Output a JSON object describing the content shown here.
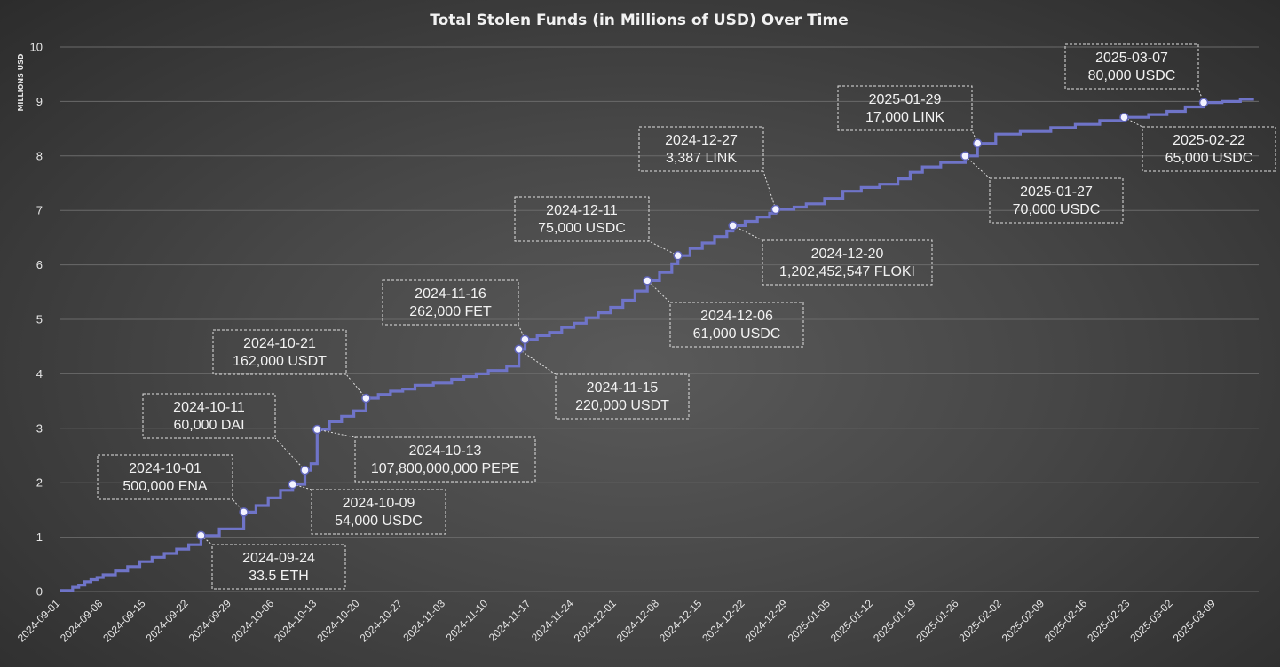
{
  "chart_data": {
    "type": "line",
    "title": "Total Stolen Funds (in Millions of USD) Over Time",
    "ylabel": "MILLIONS USD",
    "xlabel": "",
    "ylim": [
      0,
      10
    ],
    "xlim": [
      "2024-09-01",
      "2025-03-16"
    ],
    "y_ticks": [
      "0",
      "1",
      "2",
      "3",
      "4",
      "5",
      "6",
      "7",
      "8",
      "9",
      "10"
    ],
    "x_ticks": [
      "2024-09-01",
      "2024-09-08",
      "2024-09-15",
      "2024-09-22",
      "2024-09-29",
      "2024-10-06",
      "2024-10-13",
      "2024-10-20",
      "2024-10-27",
      "2024-11-03",
      "2024-11-10",
      "2024-11-17",
      "2024-11-24",
      "2024-12-01",
      "2024-12-08",
      "2024-12-15",
      "2024-12-22",
      "2024-12-29",
      "2025-01-05",
      "2025-01-12",
      "2025-01-19",
      "2025-01-26",
      "2025-02-02",
      "2025-02-09",
      "2025-02-16",
      "2025-02-23",
      "2025-03-02",
      "2025-03-09"
    ],
    "grid": true,
    "legend": "none",
    "line_style": "step",
    "color": "#6f74c8",
    "series": [
      {
        "dates": [
          "2024-09-01",
          "2024-09-03",
          "2024-09-04",
          "2024-09-05",
          "2024-09-06",
          "2024-09-07",
          "2024-09-08",
          "2024-09-10",
          "2024-09-12",
          "2024-09-14",
          "2024-09-16",
          "2024-09-18",
          "2024-09-20",
          "2024-09-22",
          "2024-09-24",
          "2024-09-27",
          "2024-10-01",
          "2024-10-03",
          "2024-10-05",
          "2024-10-07",
          "2024-10-09",
          "2024-10-11",
          "2024-10-12",
          "2024-10-13",
          "2024-10-15",
          "2024-10-17",
          "2024-10-19",
          "2024-10-21",
          "2024-10-23",
          "2024-10-25",
          "2024-10-27",
          "2024-10-29",
          "2024-11-01",
          "2024-11-04",
          "2024-11-06",
          "2024-11-08",
          "2024-11-10",
          "2024-11-13",
          "2024-11-15",
          "2024-11-16",
          "2024-11-18",
          "2024-11-20",
          "2024-11-22",
          "2024-11-24",
          "2024-11-26",
          "2024-11-28",
          "2024-11-30",
          "2024-12-02",
          "2024-12-04",
          "2024-12-06",
          "2024-12-08",
          "2024-12-10",
          "2024-12-11",
          "2024-12-13",
          "2024-12-15",
          "2024-12-17",
          "2024-12-19",
          "2024-12-20",
          "2024-12-22",
          "2024-12-24",
          "2024-12-26",
          "2024-12-27",
          "2024-12-30",
          "2025-01-01",
          "2025-01-04",
          "2025-01-07",
          "2025-01-10",
          "2025-01-13",
          "2025-01-16",
          "2025-01-18",
          "2025-01-20",
          "2025-01-23",
          "2025-01-27",
          "2025-01-29",
          "2025-02-01",
          "2025-02-05",
          "2025-02-10",
          "2025-02-14",
          "2025-02-18",
          "2025-02-22",
          "2025-02-26",
          "2025-03-01",
          "2025-03-04",
          "2025-03-07",
          "2025-03-10",
          "2025-03-13",
          "2025-03-15"
        ],
        "values": [
          0.02,
          0.08,
          0.12,
          0.18,
          0.22,
          0.26,
          0.31,
          0.38,
          0.46,
          0.55,
          0.63,
          0.7,
          0.78,
          0.86,
          1.03,
          1.15,
          1.46,
          1.58,
          1.72,
          1.86,
          1.97,
          2.23,
          2.35,
          2.98,
          3.12,
          3.22,
          3.32,
          3.55,
          3.62,
          3.68,
          3.72,
          3.79,
          3.83,
          3.9,
          3.95,
          4.0,
          4.06,
          4.14,
          4.45,
          4.63,
          4.7,
          4.76,
          4.85,
          4.93,
          5.03,
          5.12,
          5.22,
          5.35,
          5.52,
          5.71,
          5.86,
          6.02,
          6.17,
          6.3,
          6.4,
          6.52,
          6.62,
          6.72,
          6.8,
          6.88,
          6.95,
          7.02,
          7.06,
          7.12,
          7.22,
          7.35,
          7.42,
          7.48,
          7.58,
          7.7,
          7.8,
          7.88,
          8.0,
          8.23,
          8.4,
          8.45,
          8.52,
          8.58,
          8.65,
          8.71,
          8.76,
          8.82,
          8.9,
          8.98,
          9.0,
          9.04,
          9.07
        ]
      }
    ],
    "annotations": [
      {
        "date": "2024-09-24",
        "value": 1.03,
        "label": "2024-09-24",
        "amount": "33.5 ETH"
      },
      {
        "date": "2024-10-01",
        "value": 1.46,
        "label": "2024-10-01",
        "amount": "500,000 ENA"
      },
      {
        "date": "2024-10-09",
        "value": 1.97,
        "label": "2024-10-09",
        "amount": "54,000 USDC"
      },
      {
        "date": "2024-10-11",
        "value": 2.23,
        "label": "2024-10-11",
        "amount": "60,000 DAI"
      },
      {
        "date": "2024-10-13",
        "value": 2.98,
        "label": "2024-10-13",
        "amount": "107,800,000,000 PEPE"
      },
      {
        "date": "2024-10-21",
        "value": 3.55,
        "label": "2024-10-21",
        "amount": "162,000 USDT"
      },
      {
        "date": "2024-11-15",
        "value": 4.45,
        "label": "2024-11-15",
        "amount": "220,000 USDT"
      },
      {
        "date": "2024-11-16",
        "value": 4.63,
        "label": "2024-11-16",
        "amount": "262,000 FET"
      },
      {
        "date": "2024-12-06",
        "value": 5.71,
        "label": "2024-12-06",
        "amount": "61,000 USDC"
      },
      {
        "date": "2024-12-11",
        "value": 6.17,
        "label": "2024-12-11",
        "amount": "75,000 USDC"
      },
      {
        "date": "2024-12-20",
        "value": 6.72,
        "label": "2024-12-20",
        "amount": "1,202,452,547 FLOKI"
      },
      {
        "date": "2024-12-27",
        "value": 7.02,
        "label": "2024-12-27",
        "amount": "3,387 LINK"
      },
      {
        "date": "2025-01-27",
        "value": 8.0,
        "label": "2025-01-27",
        "amount": "70,000 USDC"
      },
      {
        "date": "2025-01-29",
        "value": 8.23,
        "label": "2025-01-29",
        "amount": "17,000 LINK"
      },
      {
        "date": "2025-02-22",
        "value": 8.71,
        "label": "2025-02-22",
        "amount": "65,000 USDC"
      },
      {
        "date": "2025-03-07",
        "value": 8.98,
        "label": "2025-03-07",
        "amount": "80,000 USDC"
      }
    ]
  }
}
